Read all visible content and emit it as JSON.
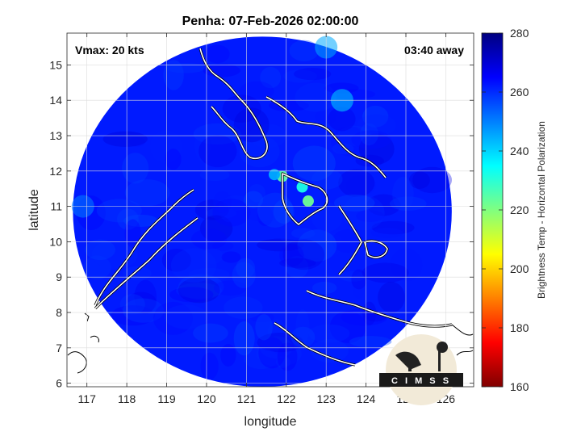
{
  "chart_data": {
    "type": "heatmap",
    "title": "Penha: 07-Feb-2026 02:00:00",
    "xlabel": "longitude",
    "ylabel": "latitude",
    "xlim": [
      116.5,
      126.7
    ],
    "ylim": [
      5.9,
      15.9
    ],
    "xticks": [
      117,
      118,
      119,
      120,
      121,
      122,
      123,
      124,
      125,
      126
    ],
    "yticks": [
      6,
      7,
      8,
      9,
      10,
      11,
      12,
      13,
      14,
      15
    ],
    "grid": true,
    "annotations": {
      "vmax": "Vmax: 20 kts",
      "away": "03:40 away"
    },
    "swath": {
      "center_lon": 121.4,
      "center_lat": 10.85,
      "radius_lon": 4.75,
      "radius_lat": 4.95
    },
    "colorbar": {
      "label": "Brightness Temp - Horizontal Polarization",
      "clim": [
        160,
        280
      ],
      "ticks": [
        160,
        180,
        200,
        220,
        240,
        260,
        280
      ],
      "colormap": [
        "#800000",
        "#ff0000",
        "#ff8000",
        "#ffff00",
        "#80ff80",
        "#00ffff",
        "#0080ff",
        "#0000ff",
        "#000080"
      ]
    },
    "features": [
      {
        "name": "convective cell",
        "lon": 121.9,
        "lat": 11.85,
        "value": 225
      },
      {
        "name": "convective cell",
        "lon": 122.4,
        "lat": 11.55,
        "value": 232
      },
      {
        "name": "convective cell",
        "lon": 122.55,
        "lat": 11.15,
        "value": 222
      },
      {
        "name": "convective cell",
        "lon": 121.7,
        "lat": 11.9,
        "value": 245
      },
      {
        "name": "warm area",
        "lon": 123.0,
        "lat": 15.5,
        "value": 245
      },
      {
        "name": "warm area",
        "lon": 116.9,
        "lat": 11.0,
        "value": 250
      },
      {
        "name": "warm area",
        "lon": 123.4,
        "lat": 14.0,
        "value": 240
      }
    ],
    "logo": "C I M S S"
  }
}
